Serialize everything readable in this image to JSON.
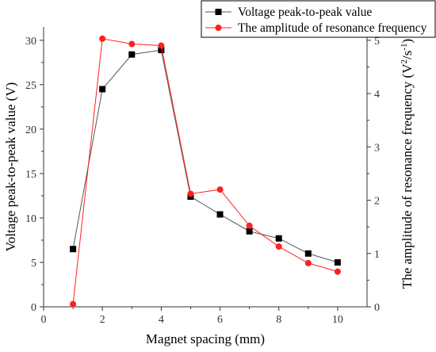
{
  "chart_data": {
    "type": "line",
    "xlabel": "Magnet spacing (mm)",
    "ylabel_left": "Voltage peak-to-peak value (V)",
    "ylabel_right_prefix": "The amplitude of resonance frequency (V",
    "ylabel_right_sup": "2",
    "ylabel_right_mid": "/s",
    "ylabel_right_sup2": "-1",
    "ylabel_right_suffix": ")",
    "xlim": [
      0,
      11
    ],
    "ylim_left": [
      0,
      31.5
    ],
    "ylim_right": [
      0,
      5.25
    ],
    "x_ticks": [
      0,
      2,
      4,
      6,
      8,
      10
    ],
    "y_left_ticks": [
      0,
      5,
      10,
      15,
      20,
      25,
      30
    ],
    "y_right_ticks": [
      0,
      1,
      2,
      3,
      4,
      5
    ],
    "x": [
      1,
      2,
      3,
      4,
      5,
      6,
      7,
      8,
      9,
      10
    ],
    "series": [
      {
        "name": "Voltage peak-to-peak value",
        "axis": "left",
        "marker": "square",
        "color": "#000000",
        "line_color": "#555555",
        "values": [
          6.5,
          24.5,
          28.4,
          28.9,
          12.4,
          10.4,
          8.5,
          7.7,
          6.0,
          5.0
        ]
      },
      {
        "name": "The amplitude of resonance frequency",
        "axis": "right",
        "marker": "circle",
        "color": "#ff2020",
        "line_color": "#ff2020",
        "values": [
          0.05,
          5.03,
          4.93,
          4.9,
          2.12,
          2.2,
          1.52,
          1.13,
          0.82,
          0.66
        ]
      }
    ],
    "legend_position": "top-right",
    "grid": false
  }
}
